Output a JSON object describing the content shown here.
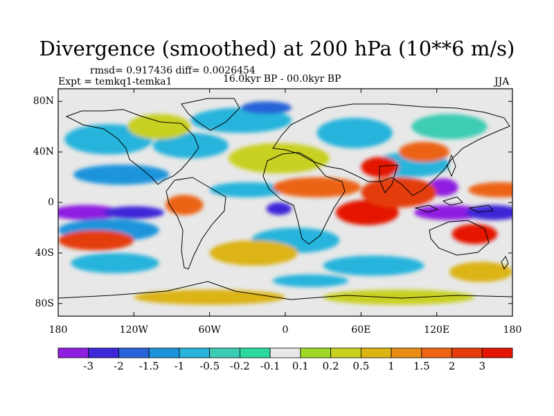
{
  "title": "Divergence (smoothed) at 200 hPa (10**6 m/s)",
  "stats": "rmsd= 0.917436 diff= 0.0026454",
  "experiment": "Expt = temkq1-temka1",
  "period": "16.0kyr BP - 00.0kyr BP",
  "season": "JJA",
  "map": {
    "projection": "cylindrical equidistant",
    "lon_range": [
      -180,
      180
    ],
    "lat_range": [
      -90,
      90
    ],
    "x_ticks": [
      {
        "value": -180,
        "label": "180"
      },
      {
        "value": -120,
        "label": "120W"
      },
      {
        "value": -60,
        "label": "60W"
      },
      {
        "value": 0,
        "label": "0"
      },
      {
        "value": 60,
        "label": "60E"
      },
      {
        "value": 120,
        "label": "120E"
      },
      {
        "value": 180,
        "label": "180"
      }
    ],
    "y_ticks": [
      {
        "value": 80,
        "label": "80N"
      },
      {
        "value": 40,
        "label": "40N"
      },
      {
        "value": 0,
        "label": "0"
      },
      {
        "value": -40,
        "label": "40S"
      },
      {
        "value": -80,
        "label": "80S"
      }
    ],
    "neutral_color": "#e8e8e8",
    "field_blobs": [
      {
        "lon": -158,
        "lat": -8,
        "rlon": 28,
        "rlat": 6,
        "level": 0
      },
      {
        "lon": -120,
        "lat": -8,
        "rlon": 24,
        "rlat": 5,
        "level": 1
      },
      {
        "lon": -140,
        "lat": -22,
        "rlon": 40,
        "rlat": 9,
        "level": 3
      },
      {
        "lon": -135,
        "lat": -48,
        "rlon": 35,
        "rlat": 8,
        "level": 4
      },
      {
        "lon": -130,
        "lat": 22,
        "rlon": 38,
        "rlat": 8,
        "level": 3
      },
      {
        "lon": -75,
        "lat": 45,
        "rlon": 30,
        "rlat": 10,
        "level": 4
      },
      {
        "lon": -35,
        "lat": 65,
        "rlon": 40,
        "rlat": 10,
        "level": 4
      },
      {
        "lon": -15,
        "lat": 75,
        "rlon": 20,
        "rlat": 5,
        "level": 2
      },
      {
        "lon": -5,
        "lat": -5,
        "rlon": 10,
        "rlat": 5,
        "level": 1
      },
      {
        "lon": 8,
        "lat": -30,
        "rlon": 35,
        "rlat": 10,
        "level": 4
      },
      {
        "lon": 55,
        "lat": 55,
        "rlon": 30,
        "rlat": 12,
        "level": 4
      },
      {
        "lon": 130,
        "lat": 60,
        "rlon": 30,
        "rlat": 10,
        "level": 5
      },
      {
        "lon": 125,
        "lat": 12,
        "rlon": 12,
        "rlat": 7,
        "level": 0
      },
      {
        "lon": 130,
        "lat": -8,
        "rlon": 28,
        "rlat": 6,
        "level": 0
      },
      {
        "lon": 165,
        "lat": -8,
        "rlon": 22,
        "rlat": 6,
        "level": 1
      },
      {
        "lon": 70,
        "lat": -50,
        "rlon": 40,
        "rlat": 8,
        "level": 4
      },
      {
        "lon": 20,
        "lat": -62,
        "rlon": 30,
        "rlat": 5,
        "level": 4
      },
      {
        "lon": 100,
        "lat": 30,
        "rlon": 30,
        "rlat": 10,
        "level": 4
      },
      {
        "lon": -30,
        "lat": 10,
        "rlon": 30,
        "rlat": 6,
        "level": 4
      },
      {
        "lon": -140,
        "lat": 50,
        "rlon": 35,
        "rlat": 12,
        "level": 4
      },
      {
        "lon": -100,
        "lat": 60,
        "rlon": 25,
        "rlat": 10,
        "level": 9
      },
      {
        "lon": -150,
        "lat": -30,
        "rlon": 30,
        "rlat": 8,
        "level": 13
      },
      {
        "lon": -80,
        "lat": -2,
        "rlon": 15,
        "rlat": 8,
        "level": 12
      },
      {
        "lon": -5,
        "lat": 35,
        "rlon": 40,
        "rlat": 12,
        "level": 9
      },
      {
        "lon": -25,
        "lat": -40,
        "rlon": 35,
        "rlat": 10,
        "level": 10
      },
      {
        "lon": 25,
        "lat": 12,
        "rlon": 35,
        "rlat": 8,
        "level": 12
      },
      {
        "lon": 65,
        "lat": -8,
        "rlon": 25,
        "rlat": 10,
        "level": 14
      },
      {
        "lon": 90,
        "lat": 8,
        "rlon": 30,
        "rlat": 12,
        "level": 13
      },
      {
        "lon": 75,
        "lat": 28,
        "rlon": 15,
        "rlat": 8,
        "level": 14
      },
      {
        "lon": 150,
        "lat": -25,
        "rlon": 18,
        "rlat": 8,
        "level": 14
      },
      {
        "lon": 170,
        "lat": 10,
        "rlon": 25,
        "rlat": 6,
        "level": 12
      },
      {
        "lon": 110,
        "lat": 40,
        "rlon": 20,
        "rlat": 8,
        "level": 12
      },
      {
        "lon": 155,
        "lat": -55,
        "rlon": 25,
        "rlat": 8,
        "level": 10
      },
      {
        "lon": -60,
        "lat": -75,
        "rlon": 60,
        "rlat": 6,
        "level": 10
      },
      {
        "lon": 90,
        "lat": -75,
        "rlon": 60,
        "rlat": 6,
        "level": 9
      }
    ]
  },
  "legend": {
    "label_bar": "color legend",
    "colors": [
      "#8f1ee0",
      "#3c28d8",
      "#2864d8",
      "#1c94dc",
      "#28b4dc",
      "#3cccb4",
      "#2cd8a0",
      "#e8e8e8",
      "#a0d828",
      "#c8d020",
      "#dcb414",
      "#e88c14",
      "#ec6414",
      "#e43c0c",
      "#e41404"
    ],
    "labels": [
      "-3",
      "-2",
      "-1.5",
      "-1",
      "-0.5",
      "-0.2",
      "-0.1",
      "0.1",
      "0.2",
      "0.5",
      "1",
      "1.5",
      "2",
      "3"
    ]
  }
}
